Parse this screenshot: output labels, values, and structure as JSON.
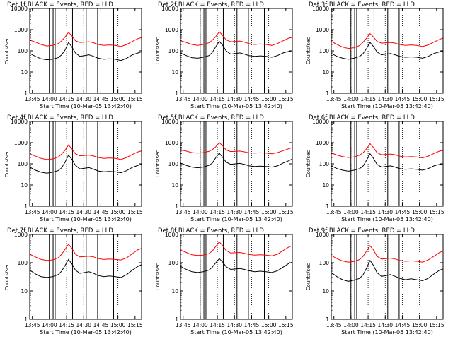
{
  "figure": {
    "xlabel": "Start Time (10-Mar-05 13:42:40)",
    "ylabel": "Counts/sec",
    "legend_text": "BLACK = Events, RED = LLD",
    "x_tick_labels": [
      "13:45",
      "14:00",
      "14:15",
      "14:30",
      "14:45",
      "15:00",
      "15:15"
    ],
    "y_tick_labels": [
      "1",
      "10",
      "100",
      "1000",
      "10000"
    ],
    "colors": {
      "events": "#000000",
      "lld": "#ff0000",
      "axes": "#000000",
      "background": "#ffffff"
    }
  },
  "chart_data": [
    {
      "type": "line",
      "title": "Det 1f BLACK = Events, RED = LLD",
      "xlabel": "Start Time (10-Mar-05 13:42:40)",
      "ylabel": "Counts/sec",
      "y_scale": "log",
      "ylim": [
        1,
        10000
      ],
      "xlim_minutes": [
        0,
        98
      ],
      "x": [
        0,
        5,
        10,
        15,
        20,
        25,
        28,
        31,
        34,
        37,
        40,
        44,
        48,
        52,
        56,
        60,
        65,
        70,
        75,
        80,
        85,
        90,
        95,
        98
      ],
      "series": [
        {
          "name": "Events",
          "color": "#000000",
          "values": [
            75,
            55,
            42,
            38,
            40,
            48,
            65,
            110,
            250,
            150,
            80,
            55,
            60,
            65,
            55,
            45,
            40,
            42,
            40,
            35,
            45,
            65,
            80,
            90
          ]
        },
        {
          "name": "LLD",
          "color": "#ff0000",
          "values": [
            320,
            260,
            200,
            170,
            180,
            220,
            300,
            450,
            750,
            500,
            300,
            250,
            260,
            270,
            240,
            200,
            180,
            190,
            180,
            160,
            200,
            280,
            380,
            420
          ]
        }
      ],
      "vertical_lines": {
        "solid_minutes": [
          17.2,
          20.5,
          22.3,
          37.5,
          49.5,
          59.5,
          73.5
        ],
        "dotted_minutes": [
          17.3,
          32.3,
          47.3,
          62.3,
          77.3
        ]
      }
    },
    {
      "type": "line",
      "title": "Det 2f BLACK = Events, RED = LLD",
      "xlabel": "Start Time (10-Mar-05 13:42:40)",
      "ylabel": "Counts/sec",
      "y_scale": "log",
      "ylim": [
        1,
        10000
      ],
      "xlim_minutes": [
        0,
        98
      ],
      "x": [
        0,
        5,
        10,
        15,
        20,
        25,
        28,
        31,
        34,
        37,
        40,
        44,
        48,
        52,
        56,
        60,
        65,
        70,
        75,
        80,
        85,
        90,
        95,
        98
      ],
      "series": [
        {
          "name": "Events",
          "color": "#000000",
          "values": [
            80,
            60,
            48,
            45,
            50,
            60,
            85,
            160,
            280,
            180,
            100,
            70,
            75,
            80,
            70,
            60,
            55,
            58,
            55,
            50,
            60,
            80,
            95,
            100
          ]
        },
        {
          "name": "LLD",
          "color": "#ff0000",
          "values": [
            300,
            250,
            200,
            180,
            200,
            240,
            320,
            480,
            800,
            520,
            330,
            270,
            280,
            290,
            260,
            220,
            200,
            210,
            200,
            180,
            220,
            300,
            400,
            430
          ]
        }
      ],
      "vertical_lines": {
        "solid_minutes": [
          17.2,
          20.5,
          22.3,
          37.5,
          49.5,
          59.5,
          73.5
        ],
        "dotted_minutes": [
          17.3,
          32.3,
          47.3,
          62.3,
          77.3
        ]
      }
    },
    {
      "type": "line",
      "title": "Det 3f BLACK = Events, RED = LLD",
      "xlabel": "Start Time (10-Mar-05 13:42:40)",
      "ylabel": "Counts/sec",
      "y_scale": "log",
      "ylim": [
        1,
        10000
      ],
      "xlim_minutes": [
        0,
        98
      ],
      "x": [
        0,
        5,
        10,
        15,
        20,
        25,
        28,
        31,
        34,
        37,
        40,
        44,
        48,
        52,
        56,
        60,
        65,
        70,
        75,
        80,
        85,
        90,
        95,
        98
      ],
      "series": [
        {
          "name": "Events",
          "color": "#000000",
          "values": [
            75,
            55,
            45,
            40,
            45,
            55,
            75,
            130,
            250,
            160,
            90,
            65,
            70,
            75,
            65,
            55,
            50,
            52,
            50,
            45,
            55,
            75,
            90,
            95
          ]
        },
        {
          "name": "LLD",
          "color": "#ff0000",
          "values": [
            280,
            200,
            150,
            130,
            140,
            180,
            260,
            400,
            650,
            450,
            280,
            230,
            240,
            250,
            230,
            200,
            180,
            190,
            180,
            160,
            190,
            260,
            350,
            400
          ]
        }
      ],
      "vertical_lines": {
        "solid_minutes": [
          17.2,
          20.5,
          22.3,
          37.5,
          49.5,
          59.5,
          73.5
        ],
        "dotted_minutes": [
          17.3,
          32.3,
          47.3,
          62.3,
          77.3
        ]
      }
    },
    {
      "type": "line",
      "title": "Det 4f BLACK = Events, RED = LLD",
      "xlabel": "Start Time (10-Mar-05 13:42:40)",
      "ylabel": "Counts/sec",
      "y_scale": "log",
      "ylim": [
        1,
        10000
      ],
      "xlim_minutes": [
        0,
        98
      ],
      "x": [
        0,
        5,
        10,
        15,
        20,
        25,
        28,
        31,
        34,
        37,
        40,
        44,
        48,
        52,
        56,
        60,
        65,
        70,
        75,
        80,
        85,
        90,
        95,
        98
      ],
      "series": [
        {
          "name": "Events",
          "color": "#000000",
          "values": [
            70,
            50,
            40,
            36,
            40,
            48,
            65,
            120,
            260,
            160,
            85,
            58,
            62,
            66,
            56,
            46,
            42,
            44,
            42,
            38,
            48,
            68,
            85,
            95
          ]
        },
        {
          "name": "LLD",
          "color": "#ff0000",
          "values": [
            300,
            230,
            180,
            160,
            170,
            210,
            290,
            440,
            780,
            500,
            300,
            240,
            250,
            260,
            235,
            200,
            180,
            190,
            180,
            160,
            200,
            280,
            370,
            410
          ]
        }
      ],
      "vertical_lines": {
        "solid_minutes": [
          17.2,
          20.5,
          22.3,
          37.5,
          49.5,
          59.5,
          73.5
        ],
        "dotted_minutes": [
          17.3,
          32.3,
          47.3,
          62.3,
          77.3
        ]
      }
    },
    {
      "type": "line",
      "title": "Det 5f BLACK = Events, RED = LLD",
      "xlabel": "Start Time (10-Mar-05 13:42:40)",
      "ylabel": "Counts/sec",
      "y_scale": "log",
      "ylim": [
        1,
        10000
      ],
      "xlim_minutes": [
        0,
        98
      ],
      "x": [
        0,
        5,
        10,
        15,
        20,
        25,
        28,
        31,
        34,
        37,
        40,
        44,
        48,
        52,
        56,
        60,
        65,
        70,
        75,
        80,
        85,
        90,
        95,
        98
      ],
      "series": [
        {
          "name": "Events",
          "color": "#000000",
          "values": [
            110,
            85,
            70,
            65,
            70,
            85,
            110,
            200,
            320,
            200,
            120,
            95,
            100,
            105,
            95,
            80,
            75,
            78,
            75,
            70,
            80,
            110,
            140,
            170
          ]
        },
        {
          "name": "LLD",
          "color": "#ff0000",
          "values": [
            450,
            400,
            340,
            320,
            340,
            390,
            470,
            650,
            1000,
            700,
            450,
            380,
            390,
            400,
            370,
            330,
            320,
            330,
            320,
            300,
            340,
            420,
            520,
            580
          ]
        }
      ],
      "vertical_lines": {
        "solid_minutes": [
          17.2,
          20.5,
          22.3,
          37.5,
          49.5,
          59.5,
          73.5
        ],
        "dotted_minutes": [
          17.3,
          32.3,
          47.3,
          62.3,
          77.3
        ]
      }
    },
    {
      "type": "line",
      "title": "Det 6f BLACK = Events, RED = LLD",
      "xlabel": "Start Time (10-Mar-05 13:42:40)",
      "ylabel": "Counts/sec",
      "y_scale": "log",
      "ylim": [
        1,
        10000
      ],
      "xlim_minutes": [
        0,
        98
      ],
      "x": [
        0,
        5,
        10,
        15,
        20,
        25,
        28,
        31,
        34,
        37,
        40,
        44,
        48,
        52,
        56,
        60,
        65,
        70,
        75,
        80,
        85,
        90,
        95,
        98
      ],
      "series": [
        {
          "name": "Events",
          "color": "#000000",
          "values": [
            80,
            60,
            50,
            45,
            50,
            60,
            80,
            150,
            300,
            180,
            95,
            70,
            75,
            80,
            70,
            60,
            55,
            58,
            55,
            50,
            60,
            80,
            95,
            100
          ]
        },
        {
          "name": "LLD",
          "color": "#ff0000",
          "values": [
            330,
            260,
            220,
            200,
            210,
            260,
            340,
            520,
            900,
            580,
            340,
            270,
            280,
            290,
            270,
            230,
            210,
            220,
            210,
            190,
            230,
            310,
            400,
            430
          ]
        }
      ],
      "vertical_lines": {
        "solid_minutes": [
          17.2,
          20.5,
          22.3,
          37.5,
          49.5,
          59.5,
          73.5
        ],
        "dotted_minutes": [
          17.3,
          32.3,
          47.3,
          62.3,
          77.3
        ]
      }
    },
    {
      "type": "line",
      "title": "Det 7f BLACK = Events, RED = LLD",
      "xlabel": "Start Time (10-Mar-05 13:42:40)",
      "ylabel": "Counts/sec",
      "y_scale": "log",
      "ylim": [
        1,
        1000
      ],
      "xlim_minutes": [
        0,
        98
      ],
      "x": [
        0,
        5,
        10,
        15,
        20,
        25,
        28,
        31,
        34,
        37,
        40,
        44,
        48,
        52,
        56,
        60,
        65,
        70,
        75,
        80,
        85,
        90,
        95,
        98
      ],
      "series": [
        {
          "name": "Events",
          "color": "#000000",
          "values": [
            55,
            40,
            32,
            30,
            32,
            38,
            50,
            80,
            130,
            90,
            55,
            42,
            45,
            48,
            42,
            35,
            32,
            34,
            32,
            30,
            38,
            55,
            75,
            85
          ]
        },
        {
          "name": "LLD",
          "color": "#ff0000",
          "values": [
            200,
            160,
            130,
            120,
            125,
            150,
            200,
            300,
            450,
            320,
            200,
            160,
            165,
            170,
            160,
            140,
            130,
            135,
            130,
            125,
            150,
            210,
            290,
            320
          ]
        }
      ],
      "vertical_lines": {
        "solid_minutes": [
          17.2,
          20.5,
          22.3,
          37.5,
          49.5,
          59.5,
          73.5
        ],
        "dotted_minutes": [
          17.3,
          32.3,
          47.3,
          62.3,
          77.3
        ]
      }
    },
    {
      "type": "line",
      "title": "Det 8f BLACK = Events, RED = LLD",
      "xlabel": "Start Time (10-Mar-05 13:42:40)",
      "ylabel": "Counts/sec",
      "y_scale": "log",
      "ylim": [
        1,
        1000
      ],
      "xlim_minutes": [
        0,
        98
      ],
      "x": [
        0,
        5,
        10,
        15,
        20,
        25,
        28,
        31,
        34,
        37,
        40,
        44,
        48,
        52,
        56,
        60,
        65,
        70,
        75,
        80,
        85,
        90,
        95,
        98
      ],
      "series": [
        {
          "name": "Events",
          "color": "#000000",
          "values": [
            75,
            58,
            48,
            45,
            48,
            55,
            70,
            100,
            140,
            105,
            72,
            58,
            60,
            62,
            58,
            52,
            48,
            50,
            48,
            45,
            52,
            70,
            95,
            105
          ]
        },
        {
          "name": "LLD",
          "color": "#ff0000",
          "values": [
            280,
            230,
            190,
            180,
            185,
            210,
            260,
            380,
            550,
            400,
            270,
            220,
            225,
            230,
            215,
            195,
            185,
            190,
            185,
            175,
            200,
            270,
            360,
            400
          ]
        }
      ],
      "vertical_lines": {
        "solid_minutes": [
          17.2,
          20.5,
          22.3,
          37.5,
          49.5,
          59.5,
          73.5
        ],
        "dotted_minutes": [
          17.3,
          32.3,
          47.3,
          62.3,
          77.3
        ]
      }
    },
    {
      "type": "line",
      "title": "Det 9f BLACK = Events, RED = LLD",
      "xlabel": "Start Time (10-Mar-05 13:42:40)",
      "ylabel": "Counts/sec",
      "y_scale": "log",
      "ylim": [
        1,
        1000
      ],
      "xlim_minutes": [
        0,
        98
      ],
      "x": [
        0,
        5,
        10,
        15,
        20,
        25,
        28,
        31,
        34,
        37,
        40,
        44,
        48,
        52,
        56,
        60,
        65,
        70,
        75,
        80,
        85,
        90,
        95,
        98
      ],
      "series": [
        {
          "name": "Events",
          "color": "#000000",
          "values": [
            45,
            32,
            25,
            22,
            24,
            28,
            38,
            65,
            120,
            80,
            45,
            33,
            35,
            38,
            33,
            28,
            25,
            27,
            25,
            23,
            28,
            40,
            55,
            60
          ]
        },
        {
          "name": "LLD",
          "color": "#ff0000",
          "values": [
            180,
            140,
            115,
            105,
            110,
            130,
            170,
            260,
            400,
            280,
            170,
            135,
            140,
            145,
            135,
            120,
            112,
            116,
            112,
            105,
            125,
            170,
            230,
            260
          ]
        }
      ],
      "vertical_lines": {
        "solid_minutes": [
          17.2,
          20.5,
          22.3,
          37.5,
          49.5,
          59.5,
          73.5
        ],
        "dotted_minutes": [
          17.3,
          32.3,
          47.3,
          62.3,
          77.3
        ]
      }
    }
  ]
}
